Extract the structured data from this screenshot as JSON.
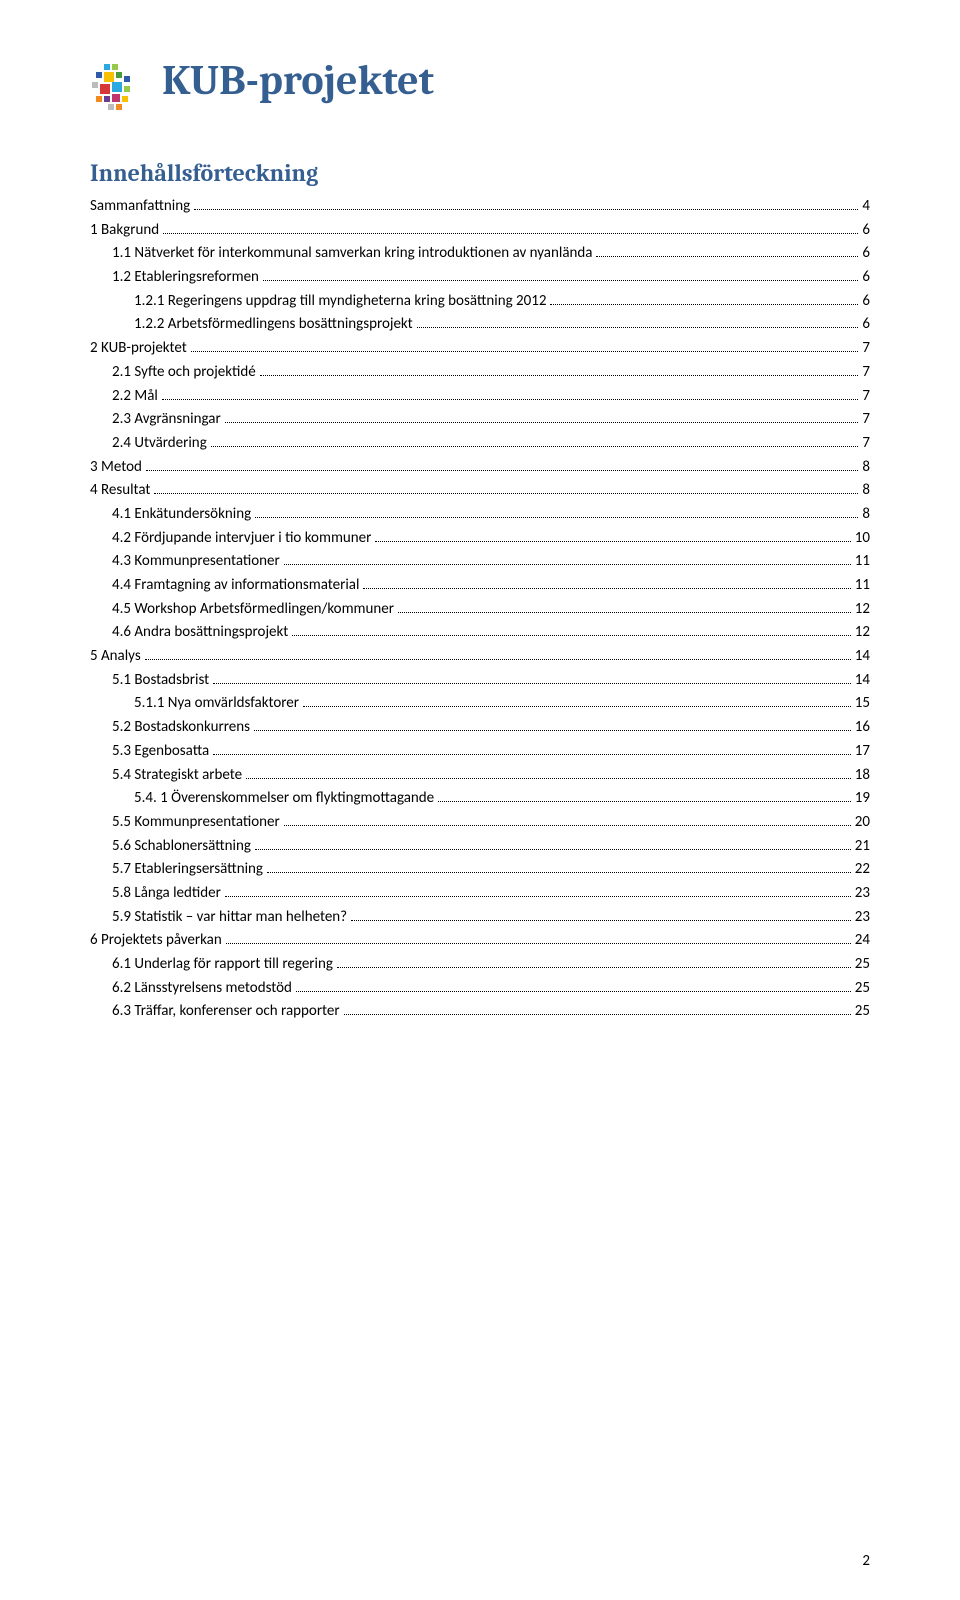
{
  "header": {
    "title": "KUB-projektet"
  },
  "toc": {
    "heading": "Innehållsförteckning",
    "entries": [
      {
        "level": 1,
        "label": "Sammanfattning",
        "page": "4"
      },
      {
        "level": 1,
        "label": "1 Bakgrund",
        "page": "6"
      },
      {
        "level": 2,
        "label": "1.1 Nätverket för interkommunal samverkan kring introduktionen av nyanlända",
        "page": "6"
      },
      {
        "level": 2,
        "label": "1.2 Etableringsreformen",
        "page": "6"
      },
      {
        "level": 3,
        "label": "1.2.1 Regeringens uppdrag till myndigheterna kring bosättning 2012",
        "page": "6"
      },
      {
        "level": 3,
        "label": "1.2.2 Arbetsförmedlingens bosättningsprojekt",
        "page": "6"
      },
      {
        "level": 1,
        "label": "2 KUB-projektet",
        "page": "7"
      },
      {
        "level": 2,
        "label": "2.1 Syfte och projektidé",
        "page": "7"
      },
      {
        "level": 2,
        "label": "2.2 Mål",
        "page": "7"
      },
      {
        "level": 2,
        "label": "2.3 Avgränsningar",
        "page": "7"
      },
      {
        "level": 2,
        "label": "2.4 Utvärdering",
        "page": "7"
      },
      {
        "level": 1,
        "label": "3 Metod",
        "page": "8"
      },
      {
        "level": 1,
        "label": "4 Resultat",
        "page": "8"
      },
      {
        "level": 2,
        "label": "4.1 Enkätundersökning",
        "page": "8"
      },
      {
        "level": 2,
        "label": "4.2 Fördjupande intervjuer i tio kommuner",
        "page": "10"
      },
      {
        "level": 2,
        "label": "4.3 Kommunpresentationer",
        "page": "11"
      },
      {
        "level": 2,
        "label": "4.4 Framtagning av informationsmaterial",
        "page": "11"
      },
      {
        "level": 2,
        "label": "4.5 Workshop Arbetsförmedlingen/kommuner",
        "page": "12"
      },
      {
        "level": 2,
        "label": "4.6 Andra bosättningsprojekt",
        "page": "12"
      },
      {
        "level": 1,
        "label": "5 Analys",
        "page": "14"
      },
      {
        "level": 2,
        "label": "5.1 Bostadsbrist",
        "page": "14"
      },
      {
        "level": 3,
        "label": "5.1.1 Nya omvärldsfaktorer",
        "page": "15"
      },
      {
        "level": 2,
        "label": "5.2 Bostadskonkurrens",
        "page": "16"
      },
      {
        "level": 2,
        "label": "5.3 Egenbosatta",
        "page": "17"
      },
      {
        "level": 2,
        "label": "5.4 Strategiskt arbete",
        "page": "18"
      },
      {
        "level": 3,
        "label": "5.4. 1 Överenskommelser om flyktingmottagande",
        "page": "19"
      },
      {
        "level": 2,
        "label": "5.5 Kommunpresentationer",
        "page": "20"
      },
      {
        "level": 2,
        "label": "5.6 Schablonersättning",
        "page": "21"
      },
      {
        "level": 2,
        "label": "5.7 Etableringsersättning",
        "page": "22"
      },
      {
        "level": 2,
        "label": "5.8 Långa ledtider",
        "page": "23"
      },
      {
        "level": 2,
        "label": "5.9  Statistik – var hittar man helheten?",
        "page": "23"
      },
      {
        "level": 1,
        "label": "6 Projektets påverkan",
        "page": "24"
      },
      {
        "level": 2,
        "label": "6.1 Underlag för rapport till regering",
        "page": "25"
      },
      {
        "level": 2,
        "label": "6.2 Länsstyrelsens metodstöd",
        "page": "25"
      },
      {
        "level": 2,
        "label": "6.3 Träffar, konferenser och rapporter",
        "page": "25"
      }
    ]
  },
  "footer": {
    "pageNumber": "2"
  },
  "logo": {
    "colors": {
      "cyan": "#2aa9e0",
      "blue": "#2e5aa7",
      "green": "#97c94b",
      "darkgreen": "#4a9a3a",
      "yellow": "#f6c100",
      "orange": "#f28b1f",
      "red": "#d83737",
      "magenta": "#c1356f",
      "purple": "#6a3c92",
      "grey": "#bcbcbc"
    }
  }
}
